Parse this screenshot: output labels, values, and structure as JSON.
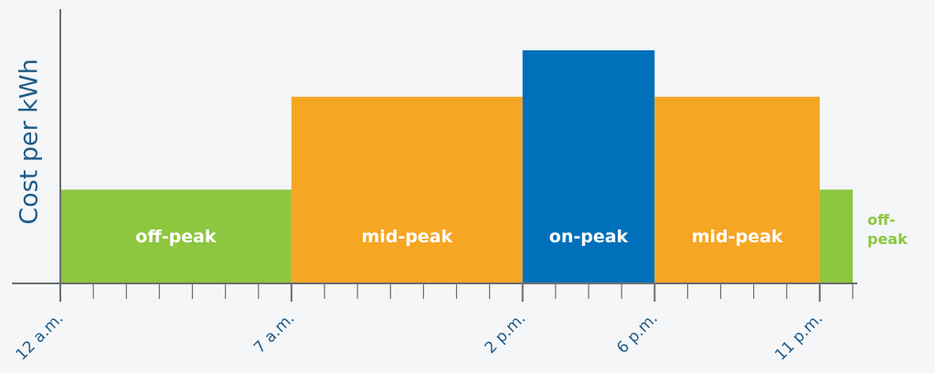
{
  "chart_data": {
    "type": "bar",
    "ylabel": "Cost per kWh",
    "xlabel": "",
    "x_range_hours": [
      0,
      24
    ],
    "ylim": [
      0,
      3
    ],
    "grid": false,
    "legend": "none",
    "tick_labels": [
      {
        "label": "12 a.m.",
        "hour": 0
      },
      {
        "label": "7 a.m.",
        "hour": 7
      },
      {
        "label": "2 p.m.",
        "hour": 14
      },
      {
        "label": "6 p.m.",
        "hour": 18
      },
      {
        "label": "11 p.m.",
        "hour": 23
      }
    ],
    "minor_tick_interval_hours": 1,
    "segments": [
      {
        "label": "off-peak",
        "start_hour": 0,
        "end_hour": 7,
        "value": 1,
        "color": "#8dc63f",
        "label_outside": false
      },
      {
        "label": "mid-peak",
        "start_hour": 7,
        "end_hour": 14,
        "value": 2,
        "color": "#f5a623",
        "label_outside": false
      },
      {
        "label": "on-peak",
        "start_hour": 14,
        "end_hour": 18,
        "value": 2.5,
        "color": "#0070ba",
        "label_outside": false
      },
      {
        "label": "mid-peak",
        "start_hour": 18,
        "end_hour": 23,
        "value": 2,
        "color": "#f5a623",
        "label_outside": false
      },
      {
        "label": "off-\npeak",
        "start_hour": 23,
        "end_hour": 24,
        "value": 1,
        "color": "#8dc63f",
        "label_outside": true
      }
    ],
    "colors": {
      "axis": "#6d6e71",
      "text": "#1f5a85",
      "background": "#f4f6f8"
    }
  }
}
